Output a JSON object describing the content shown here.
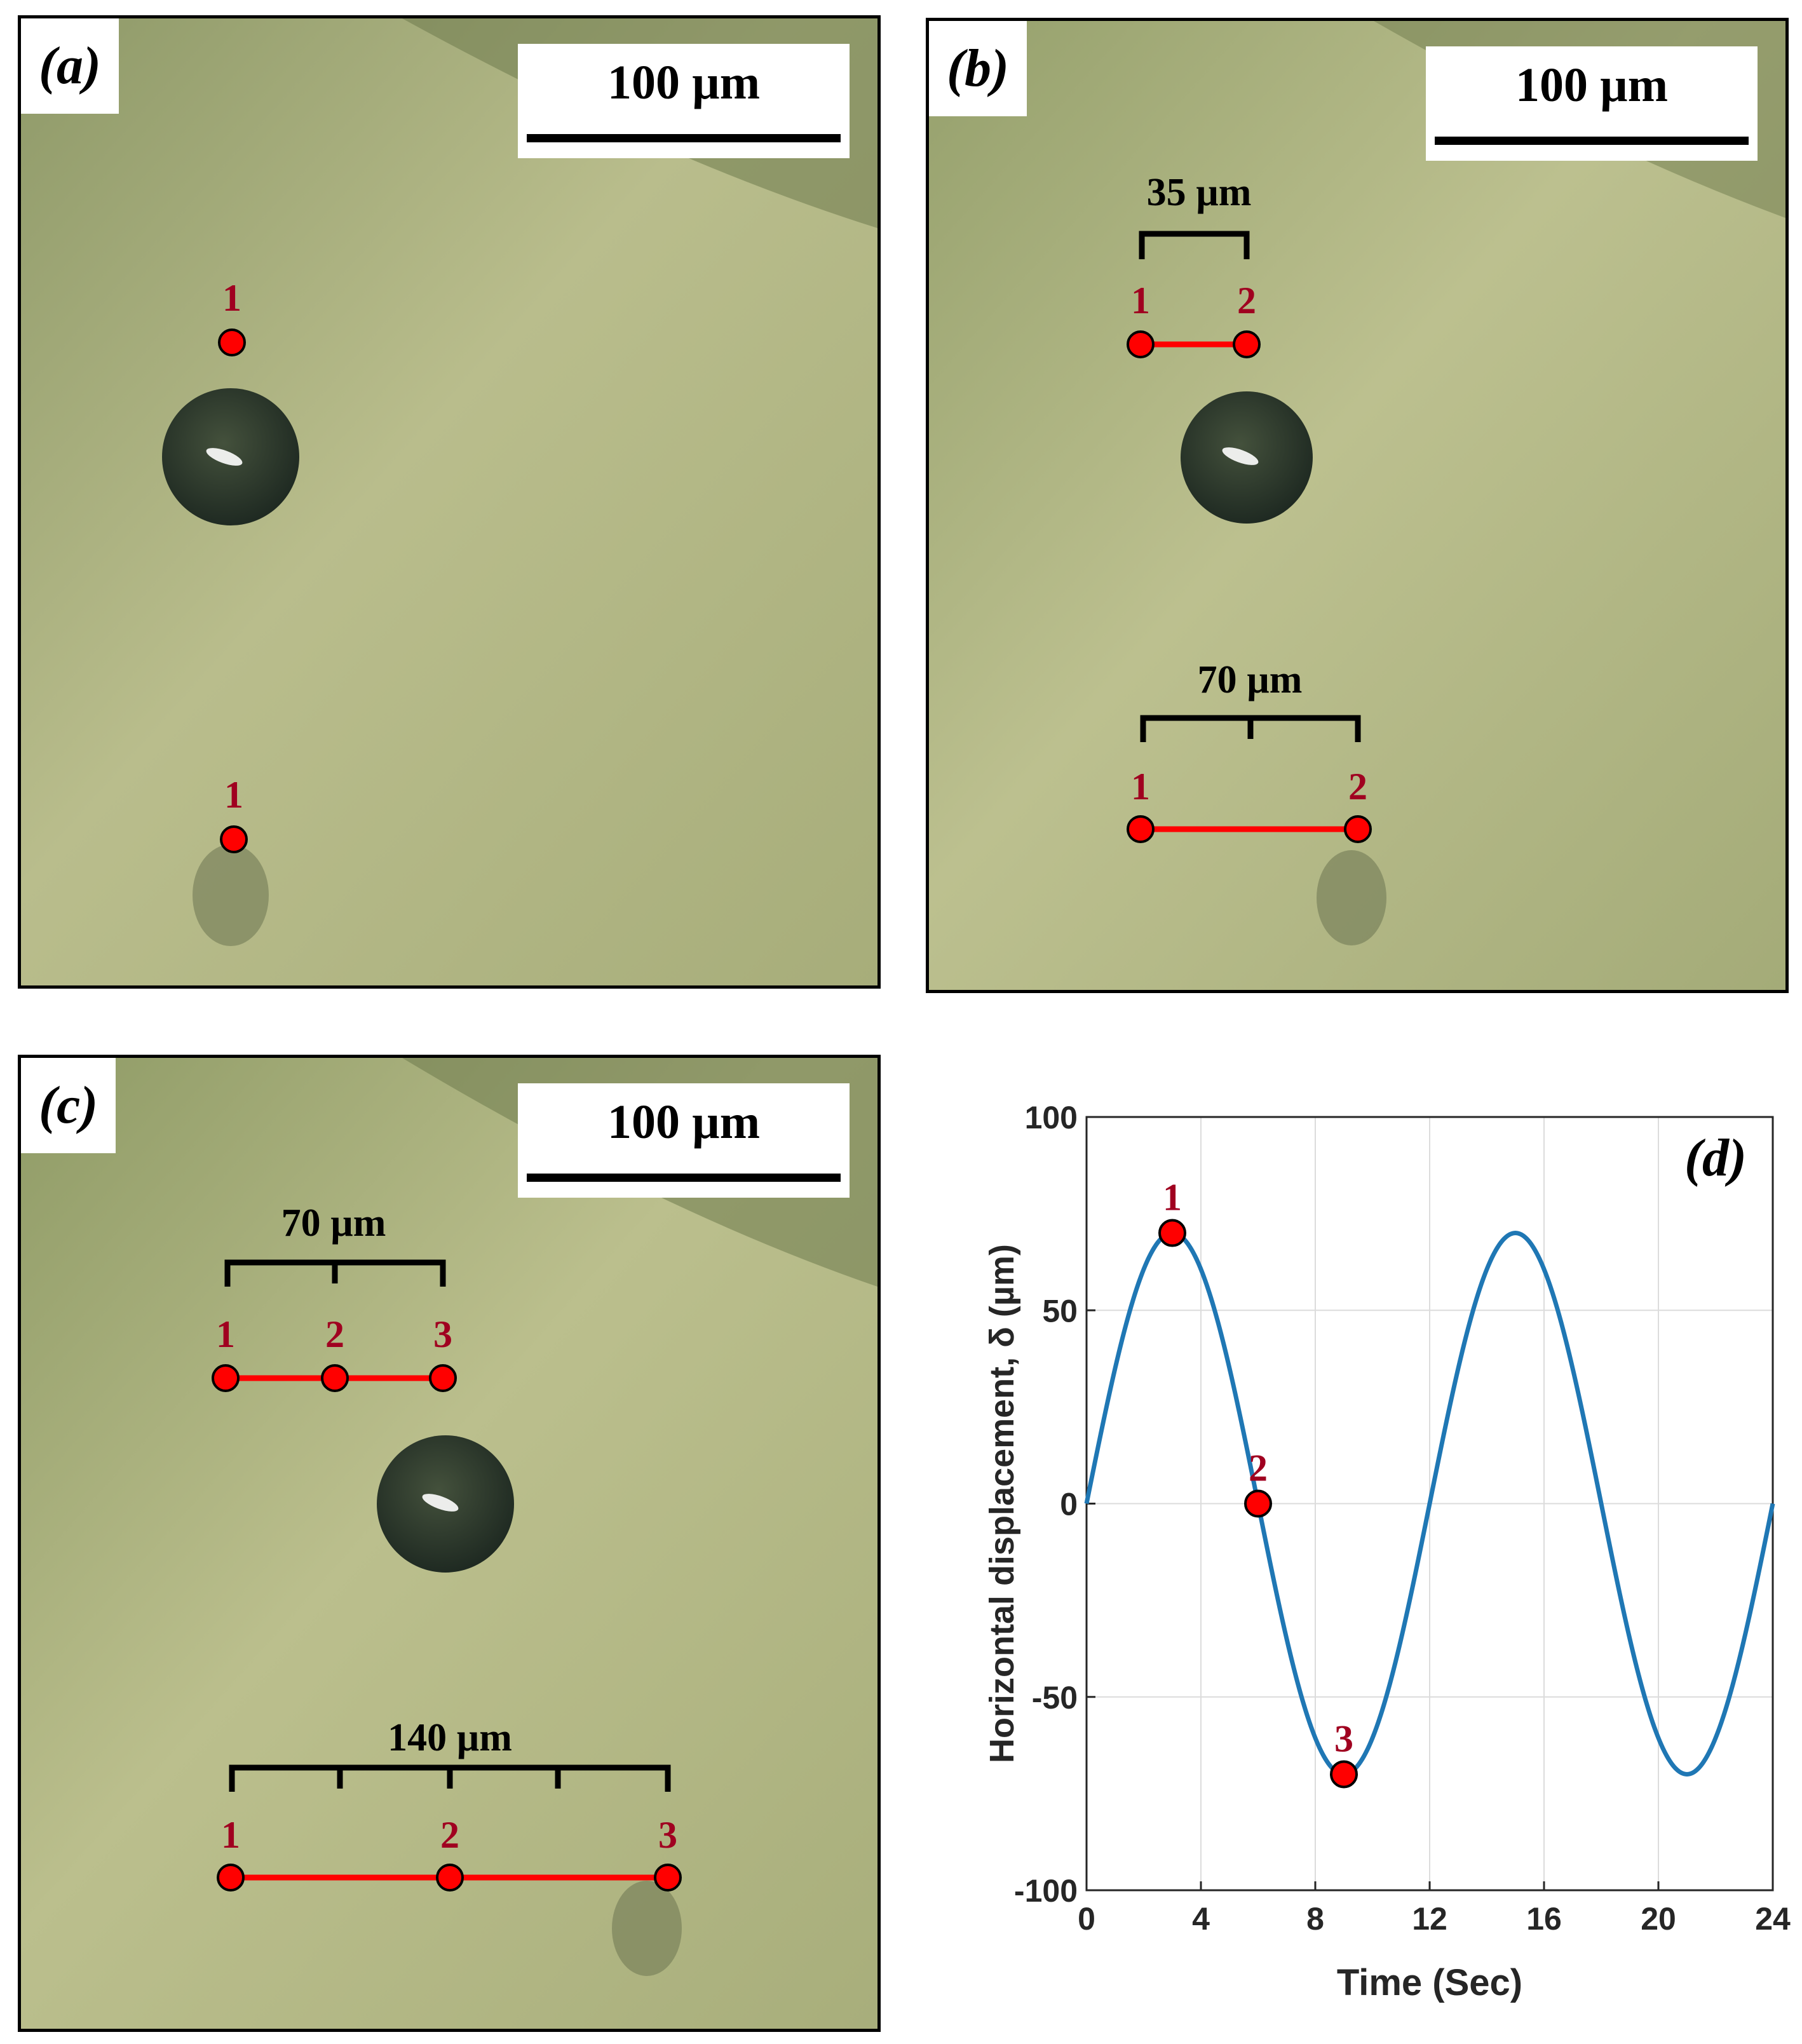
{
  "panels": [
    {
      "tag": "(a)",
      "scale_label": "100 µm",
      "markers_top": [
        "1"
      ],
      "markers_bottom": [
        "1"
      ],
      "brackets": []
    },
    {
      "tag": "(b)",
      "scale_label": "100 µm",
      "markers_top": [
        "1",
        "2"
      ],
      "markers_bottom": [
        "1",
        "2"
      ],
      "brackets": [
        "35 µm",
        "70 µm"
      ]
    },
    {
      "tag": "(c)",
      "scale_label": "100 µm",
      "markers_top": [
        "1",
        "2",
        "3"
      ],
      "markers_bottom": [
        "1",
        "2",
        "3"
      ],
      "brackets": [
        "70 µm",
        "140 µm"
      ]
    }
  ],
  "colors": {
    "substrate": "#b5b98a",
    "substrate_dark": "#6e7a4c",
    "marker_fill": "#ff0000",
    "marker_label": "#a00020",
    "curve": "#1f77b4"
  },
  "chart_data": {
    "type": "line",
    "tag": "(d)",
    "xlabel": "Time (Sec)",
    "ylabel": "Horizontal displacement, δ (µm)",
    "xlim": [
      0,
      24
    ],
    "ylim": [
      -100,
      100
    ],
    "xticks": [
      0,
      4,
      8,
      12,
      16,
      20,
      24
    ],
    "yticks": [
      -100,
      -50,
      0,
      50,
      100
    ],
    "grid": true,
    "series": [
      {
        "amplitude": 70,
        "period": 12,
        "x": [
          0,
          1,
          2,
          3,
          4,
          5,
          6,
          7,
          8,
          9,
          10,
          11,
          12,
          13,
          14,
          15,
          16,
          17,
          18,
          19,
          20,
          21,
          22,
          23,
          24
        ],
        "y": [
          0,
          35,
          60.6,
          70,
          60.6,
          35,
          0,
          -35,
          -60.6,
          -70,
          -60.6,
          -35,
          0,
          35,
          60.6,
          70,
          60.6,
          35,
          0,
          -35,
          -60.6,
          -70,
          -60.6,
          -35,
          0
        ]
      }
    ],
    "points": [
      {
        "label": "1",
        "x": 3,
        "y": 70
      },
      {
        "label": "2",
        "x": 6,
        "y": 0
      },
      {
        "label": "3",
        "x": 9,
        "y": -70
      }
    ]
  }
}
